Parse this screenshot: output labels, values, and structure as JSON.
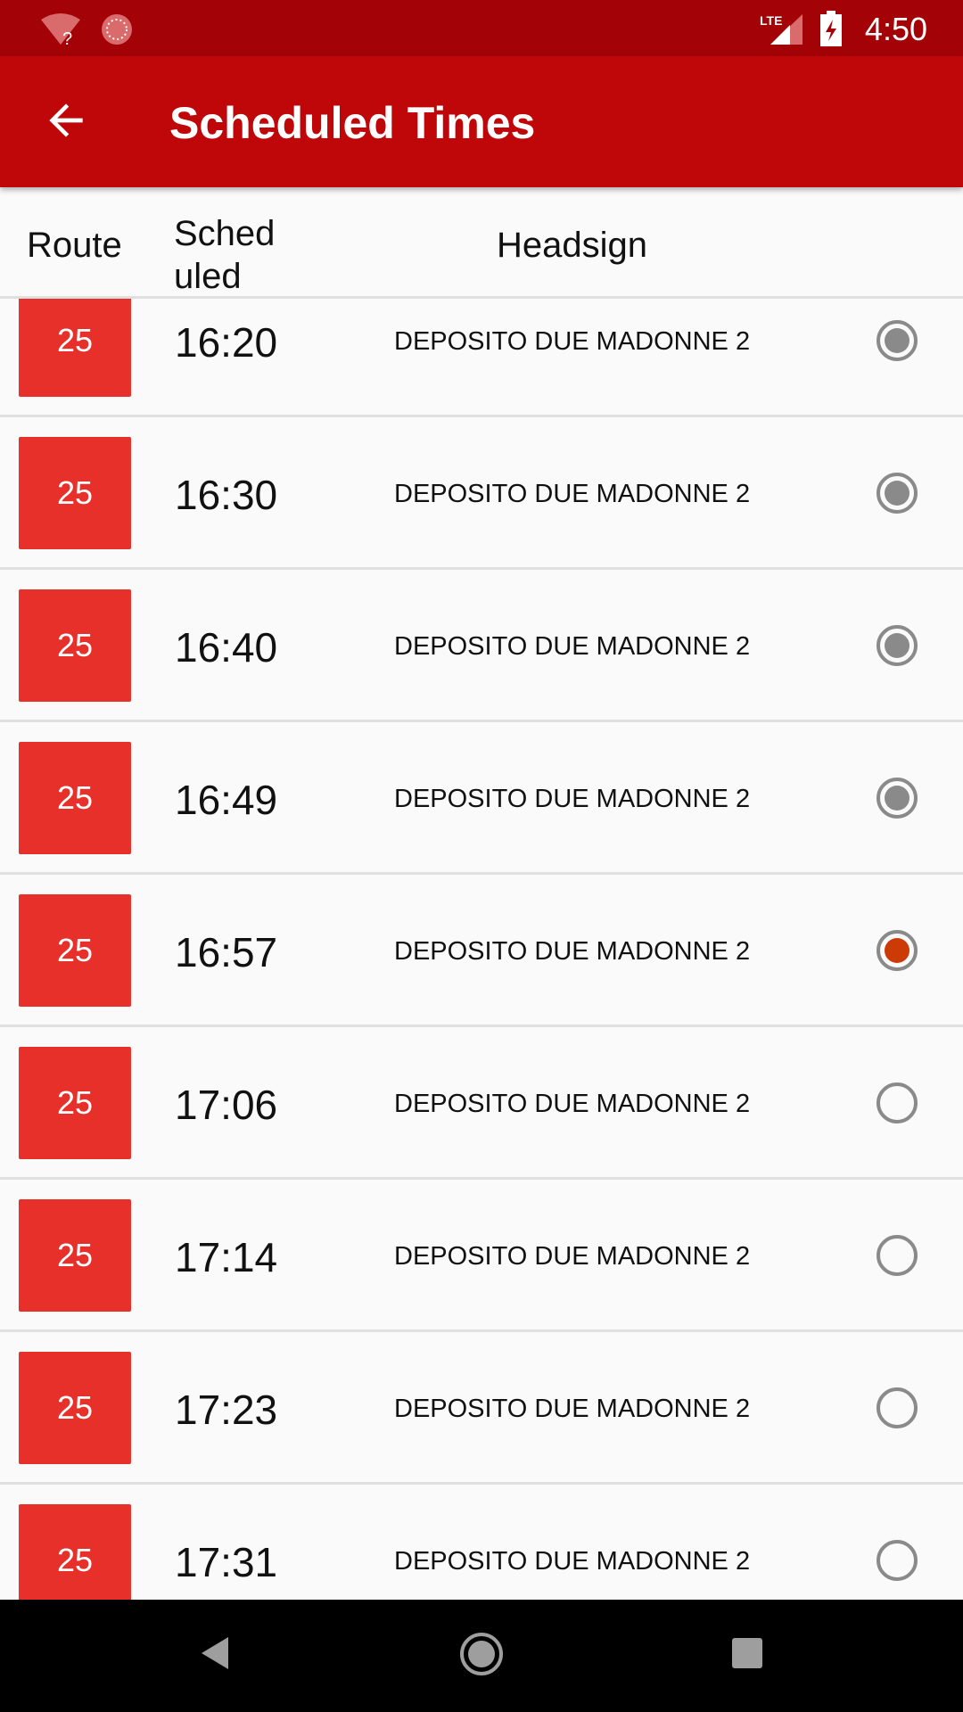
{
  "status_bar": {
    "time": "4:50",
    "icons": [
      "wifi-unknown-icon",
      "sync-icon",
      "lte-signal-icon",
      "battery-charging-icon"
    ]
  },
  "app_bar": {
    "title": "Scheduled Times",
    "back_icon": "arrow-back-icon"
  },
  "table": {
    "headers": {
      "route": "Route",
      "scheduled_line1": "Sched",
      "scheduled_line2": "uled",
      "headsign": "Headsign"
    },
    "rows": [
      {
        "route": "25",
        "time": "16:20",
        "headsign": "DEPOSITO DUE MADONNE 2",
        "state": "past"
      },
      {
        "route": "25",
        "time": "16:30",
        "headsign": "DEPOSITO DUE MADONNE 2",
        "state": "past"
      },
      {
        "route": "25",
        "time": "16:40",
        "headsign": "DEPOSITO DUE MADONNE 2",
        "state": "past"
      },
      {
        "route": "25",
        "time": "16:49",
        "headsign": "DEPOSITO DUE MADONNE 2",
        "state": "past"
      },
      {
        "route": "25",
        "time": "16:57",
        "headsign": "DEPOSITO DUE MADONNE 2",
        "state": "current"
      },
      {
        "route": "25",
        "time": "17:06",
        "headsign": "DEPOSITO DUE MADONNE 2",
        "state": "upcoming"
      },
      {
        "route": "25",
        "time": "17:14",
        "headsign": "DEPOSITO DUE MADONNE 2",
        "state": "upcoming"
      },
      {
        "route": "25",
        "time": "17:23",
        "headsign": "DEPOSITO DUE MADONNE 2",
        "state": "upcoming"
      },
      {
        "route": "25",
        "time": "17:31",
        "headsign": "DEPOSITO DUE MADONNE 2",
        "state": "upcoming"
      }
    ]
  },
  "colors": {
    "status_bar": "#a30307",
    "app_bar": "#bf0609",
    "route_badge": "#e8302a",
    "past": "#8a8a8a",
    "current": "#cc3a06"
  }
}
